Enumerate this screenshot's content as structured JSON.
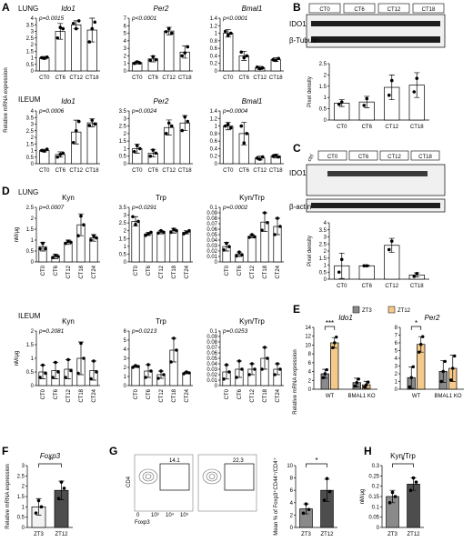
{
  "panel_labels": {
    "A": "A",
    "B": "B",
    "C": "C",
    "D": "D",
    "E": "E",
    "F": "F",
    "G": "G",
    "H": "H"
  },
  "colors": {
    "bar_white": "#ffffff",
    "zt3": "#8a8a8a",
    "zt12": "#f5c98a",
    "zt3_dark": "#4d4d4d",
    "blot_band": "#1e1e1e"
  },
  "panel_A": {
    "lung_label": "LUNG",
    "ileum_label": "ILEUM",
    "y_label": "Relative mRNA expression"
  },
  "panel_B": {
    "lanes": [
      "CT0",
      "CT6",
      "CT12",
      "CT18"
    ],
    "blot_labels": [
      "IDO1",
      "β-Tubulin"
    ]
  },
  "panel_C": {
    "lanes": [
      "ctrl",
      "CT0",
      "CT6",
      "CT12",
      "CT18"
    ],
    "blot_labels": [
      "IDO1",
      "β-actin"
    ]
  },
  "panel_D": {
    "lung_label": "LUNG",
    "ileum_label": "ILEUM"
  },
  "panel_E": {
    "legend": [
      "ZT3",
      "ZT12"
    ],
    "y_label": "Relative mRNA expression"
  },
  "panel_G": {
    "flow": {
      "gate_values": [
        "14.1",
        "22.3"
      ],
      "x_label": "Foxp3",
      "y_label": "CD4",
      "x_ticks": [
        "0",
        "10³",
        "10⁴",
        "10⁵"
      ]
    }
  },
  "chart_data": [
    {
      "id": "A-lung-ido1",
      "type": "bar",
      "title": "Ido1",
      "categories": [
        "CT0",
        "CT6",
        "CT12",
        "CT18"
      ],
      "values": [
        1,
        3,
        3.5,
        3.1
      ],
      "errors": [
        0.1,
        0.6,
        0.3,
        0.9
      ],
      "points": [
        [
          1,
          0.95,
          1.05
        ],
        [
          2.5,
          3.3,
          3.2
        ],
        [
          3.6,
          3.2,
          3.8
        ],
        [
          2.2,
          3.2,
          3.7
        ]
      ],
      "ylim": [
        0,
        4
      ],
      "yticks": [
        0,
        0.5,
        1,
        1.5,
        2,
        2.5,
        3,
        3.5,
        4
      ],
      "pvalue": "p=0.0015",
      "ylabel": "Relative mRNA expression"
    },
    {
      "id": "A-lung-per2",
      "type": "bar",
      "title": "Per2",
      "categories": [
        "CT0",
        "CT6",
        "CT12",
        "CT18"
      ],
      "values": [
        1.1,
        1.6,
        5.3,
        2.5
      ],
      "errors": [
        0.2,
        0.4,
        0.5,
        0.8
      ],
      "points": [
        [
          1,
          1.2,
          1.05
        ],
        [
          1.4,
          1.9,
          1.5
        ],
        [
          5.2,
          5.6,
          5.0
        ],
        [
          2.0,
          2.4,
          3.2
        ]
      ],
      "ylim": [
        0,
        7
      ],
      "yticks": [
        0,
        1,
        2,
        3,
        4,
        5,
        6,
        7
      ],
      "pvalue": "p<0.0001"
    },
    {
      "id": "A-lung-bmal1",
      "type": "bar",
      "title": "Bmal1",
      "categories": [
        "CT0",
        "CT6",
        "CT12",
        "CT18"
      ],
      "values": [
        1.0,
        0.4,
        0.08,
        0.3
      ],
      "errors": [
        0.1,
        0.12,
        0.04,
        0.05
      ],
      "points": [
        [
          1.05,
          0.95,
          1.0
        ],
        [
          0.5,
          0.35,
          0.4
        ],
        [
          0.1,
          0.06,
          0.08
        ],
        [
          0.3,
          0.28,
          0.33
        ]
      ],
      "ylim": [
        0,
        1.4
      ],
      "yticks": [
        0,
        0.2,
        0.4,
        0.6,
        0.8,
        1,
        1.2,
        1.4
      ],
      "pvalue": "p<0.0001"
    },
    {
      "id": "A-ileum-ido1",
      "type": "bar",
      "title": "Ido1",
      "categories": [
        "CT0",
        "CT6",
        "CT12",
        "CT18"
      ],
      "values": [
        1.0,
        0.7,
        2.4,
        3.1
      ],
      "errors": [
        0.1,
        0.2,
        0.9,
        0.3
      ],
      "points": [
        [
          1.0,
          0.95,
          1.1
        ],
        [
          0.5,
          0.7,
          0.8
        ],
        [
          1.6,
          2.5,
          3.2
        ],
        [
          2.9,
          3.3,
          3.0
        ]
      ],
      "ylim": [
        0,
        4
      ],
      "yticks": [
        0,
        0.5,
        1,
        1.5,
        2,
        2.5,
        3,
        3.5,
        4
      ],
      "pvalue": "p=0.0006",
      "ylabel": "Relative mRNA expression"
    },
    {
      "id": "A-ileum-per2",
      "type": "bar",
      "title": "Per2",
      "categories": [
        "CT0",
        "CT6",
        "CT12",
        "CT18"
      ],
      "values": [
        1.0,
        0.7,
        2.4,
        2.7
      ],
      "errors": [
        0.3,
        0.25,
        0.5,
        0.5
      ],
      "points": [
        [
          0.8,
          1.2,
          1.0
        ],
        [
          0.5,
          0.9,
          0.7
        ],
        [
          2.0,
          2.7,
          2.5
        ],
        [
          2.2,
          3.1,
          2.8
        ]
      ],
      "ylim": [
        0,
        3.5
      ],
      "yticks": [
        0,
        0.5,
        1,
        1.5,
        2,
        2.5,
        3,
        3.5
      ],
      "pvalue": "p=0.0024"
    },
    {
      "id": "A-ileum-bmal1",
      "type": "bar",
      "title": "Bmal1",
      "categories": [
        "CT0",
        "CT6",
        "CT12",
        "CT18"
      ],
      "values": [
        1.0,
        0.8,
        0.15,
        0.2
      ],
      "errors": [
        0.1,
        0.3,
        0.05,
        0.05
      ],
      "points": [
        [
          1.0,
          1.05,
          0.95
        ],
        [
          1.0,
          0.55,
          0.8
        ],
        [
          0.15,
          0.12,
          0.18
        ],
        [
          0.2,
          0.22,
          0.18
        ]
      ],
      "ylim": [
        0,
        1.4
      ],
      "yticks": [
        0,
        0.2,
        0.4,
        0.6,
        0.8,
        1,
        1.2,
        1.4
      ],
      "pvalue": "p=0.0004"
    },
    {
      "id": "B-density",
      "type": "bar",
      "title": "",
      "categories": [
        "CT0",
        "CT6",
        "CT12",
        "CT18"
      ],
      "values": [
        0.75,
        0.8,
        1.45,
        1.55
      ],
      "errors": [
        0.15,
        0.25,
        0.55,
        0.55
      ],
      "points": [
        [
          0.7,
          0.8
        ],
        [
          0.65,
          0.95
        ],
        [
          1.1,
          1.75
        ],
        [
          1.25,
          1.85
        ]
      ],
      "ylim": [
        0,
        2.5
      ],
      "yticks": [
        0,
        0.5,
        1,
        1.5,
        2,
        2.5
      ],
      "ylabel": "Pixel density"
    },
    {
      "id": "C-density",
      "type": "bar",
      "title": "",
      "categories": [
        "CT0",
        "CT6",
        "CT12",
        "CT18"
      ],
      "values": [
        0.95,
        0.95,
        2.4,
        0.3
      ],
      "errors": [
        0.9,
        0.05,
        0.5,
        0.15
      ],
      "points": [
        [
          0.5,
          1.4
        ],
        [
          0.95,
          0.95
        ],
        [
          2.1,
          2.7
        ],
        [
          0.2,
          0.4
        ]
      ],
      "ylim": [
        0,
        4
      ],
      "yticks": [
        0,
        0.5,
        1,
        1.5,
        2,
        2.5,
        3,
        3.5,
        4
      ],
      "ylabel": "Pixel density"
    },
    {
      "id": "D-lung-kyn",
      "type": "bar",
      "title": "Kyn",
      "categories": [
        "CT0",
        "CT6",
        "CT12",
        "CT18",
        "CT24"
      ],
      "values": [
        0.7,
        0.25,
        0.9,
        1.7,
        1.1
      ],
      "errors": [
        0.2,
        0.1,
        0.1,
        0.5,
        0.15
      ],
      "points": [
        [
          0.6,
          0.85,
          0.6
        ],
        [
          0.2,
          0.3,
          0.25
        ],
        [
          0.85,
          0.95,
          0.9
        ],
        [
          1.2,
          2.1,
          1.7
        ],
        [
          1.0,
          1.2,
          1.1
        ]
      ],
      "ylim": [
        0,
        2.5
      ],
      "yticks": [
        0,
        0.5,
        1,
        1.5,
        2,
        2.5
      ],
      "pvalue": "p=0.0007",
      "ylabel": "nM/μg"
    },
    {
      "id": "D-lung-trp",
      "type": "bar",
      "title": "Trp",
      "categories": [
        "CT0",
        "CT6",
        "CT12",
        "CT18",
        "CT24"
      ],
      "values": [
        2.6,
        1.8,
        1.9,
        2.0,
        1.9
      ],
      "errors": [
        0.3,
        0.1,
        0.1,
        0.15,
        0.1
      ],
      "points": [
        [
          2.9,
          2.4,
          2.6
        ],
        [
          1.7,
          1.8,
          1.9
        ],
        [
          1.85,
          2.0,
          1.9
        ],
        [
          1.9,
          2.1,
          2.0
        ],
        [
          1.8,
          1.9,
          2.0
        ]
      ],
      "ylim": [
        0,
        3.5
      ],
      "yticks": [
        0,
        0.5,
        1,
        1.5,
        2,
        2.5,
        3,
        3.5
      ],
      "pvalue": "p=0.0291"
    },
    {
      "id": "D-lung-kyntrp",
      "type": "bar",
      "title": "Kyn/Trp",
      "categories": [
        "CT0",
        "CT6",
        "CT12",
        "CT18",
        "CT24"
      ],
      "values": [
        0.028,
        0.014,
        0.047,
        0.073,
        0.065
      ],
      "errors": [
        0.008,
        0.004,
        0.003,
        0.017,
        0.015
      ],
      "points": [
        [
          0.022,
          0.034,
          0.028
        ],
        [
          0.011,
          0.018,
          0.013
        ],
        [
          0.045,
          0.05,
          0.046
        ],
        [
          0.058,
          0.09,
          0.072
        ],
        [
          0.05,
          0.08,
          0.065
        ]
      ],
      "ylim": [
        0,
        0.1
      ],
      "yticks": [
        0,
        0.01,
        0.02,
        0.03,
        0.04,
        0.05,
        0.06,
        0.07,
        0.08,
        0.09,
        0.1
      ],
      "pvalue": "p=0.0002"
    },
    {
      "id": "D-ileum-kyn",
      "type": "bar",
      "title": "Kyn",
      "categories": [
        "CT0",
        "CT6",
        "CT12",
        "CT18",
        "CT24"
      ],
      "values": [
        0.5,
        0.55,
        0.6,
        1.0,
        0.55
      ],
      "errors": [
        0.25,
        0.3,
        0.35,
        0.6,
        0.35
      ],
      "points": [
        [
          0.3,
          0.75,
          0.45
        ],
        [
          0.3,
          0.85,
          0.5
        ],
        [
          0.3,
          0.95,
          0.55
        ],
        [
          0.45,
          1.55,
          1.0
        ],
        [
          0.25,
          0.9,
          0.5
        ]
      ],
      "ylim": [
        0,
        2
      ],
      "yticks": [
        0,
        0.5,
        1,
        1.5,
        2
      ],
      "pvalue": "p=0.2081",
      "ylabel": "nM/μg"
    },
    {
      "id": "D-ileum-trp",
      "type": "bar",
      "title": "Trp",
      "categories": [
        "CT0",
        "CT6",
        "CT12",
        "CT18",
        "CT24"
      ],
      "values": [
        2.1,
        1.6,
        1.2,
        3.9,
        1.4
      ],
      "errors": [
        0.1,
        0.7,
        0.4,
        1.3,
        0.1
      ],
      "points": [
        [
          2.0,
          2.2,
          2.1
        ],
        [
          0.9,
          2.3,
          1.6
        ],
        [
          0.8,
          1.6,
          1.2
        ],
        [
          2.6,
          5.2,
          3.9
        ],
        [
          1.3,
          1.5,
          1.4
        ]
      ],
      "ylim": [
        0,
        6
      ],
      "yticks": [
        0,
        1,
        2,
        3,
        4,
        5,
        6
      ],
      "pvalue": "p=0.0213"
    },
    {
      "id": "D-ileum-kyntrp",
      "type": "bar",
      "title": "Kyn/Trp",
      "categories": [
        "CT0",
        "CT6",
        "CT12",
        "CT18",
        "CT24"
      ],
      "values": [
        0.025,
        0.03,
        0.03,
        0.05,
        0.03
      ],
      "errors": [
        0.013,
        0.015,
        0.01,
        0.02,
        0.01
      ],
      "points": [
        [
          0.012,
          0.038,
          0.025
        ],
        [
          0.015,
          0.045,
          0.03
        ],
        [
          0.02,
          0.04,
          0.03
        ],
        [
          0.03,
          0.07,
          0.05
        ],
        [
          0.02,
          0.04,
          0.03
        ]
      ],
      "ylim": [
        0,
        0.1
      ],
      "yticks": [
        0,
        0.01,
        0.02,
        0.03,
        0.04,
        0.05,
        0.06,
        0.07,
        0.08,
        0.09,
        0.1
      ],
      "pvalue": "p=0.0253"
    },
    {
      "id": "E-ido1",
      "type": "grouped_bar",
      "title": "Ido1",
      "categories": [
        "WT",
        "BMAL1 KO"
      ],
      "series": [
        {
          "name": "ZT3",
          "values": [
            3.5,
            1.5
          ],
          "errors": [
            1.0,
            1.0
          ]
        },
        {
          "name": "ZT12",
          "values": [
            10.5,
            1.0
          ],
          "errors": [
            1.2,
            0.8
          ]
        }
      ],
      "points": [
        [
          [
            2.6,
            3.5,
            4.4
          ],
          [
            0.7,
            1.5,
            2.3
          ]
        ],
        [
          [
            9.4,
            10.5,
            11.8
          ],
          [
            0.5,
            1.0,
            1.6
          ]
        ]
      ],
      "ylim": [
        0,
        14
      ],
      "yticks": [
        0,
        2,
        4,
        6,
        8,
        10,
        12,
        14
      ],
      "significance": "***",
      "ylabel": "Relative mRNA expression"
    },
    {
      "id": "E-per2",
      "type": "grouped_bar",
      "title": "Per2",
      "categories": [
        "WT",
        "BMAL1 KO"
      ],
      "series": [
        {
          "name": "ZT3",
          "values": [
            1.5,
            2.3
          ],
          "errors": [
            1.4,
            1.4
          ]
        },
        {
          "name": "ZT12",
          "values": [
            5.8,
            2.7
          ],
          "errors": [
            1.0,
            1.7
          ]
        }
      ],
      "points": [
        [
          [
            0.3,
            1.5,
            2.9
          ],
          [
            1.0,
            2.3,
            3.6
          ]
        ],
        [
          [
            4.8,
            5.8,
            6.8
          ],
          [
            1.2,
            2.7,
            4.3
          ]
        ]
      ],
      "ylim": [
        0,
        8
      ],
      "yticks": [
        0,
        1,
        2,
        3,
        4,
        5,
        6,
        7,
        8
      ],
      "significance": "*"
    },
    {
      "id": "F-foxp3",
      "type": "bar",
      "title": "Foxp3",
      "categories": [
        "ZT3",
        "ZT12"
      ],
      "values": [
        1.0,
        1.8
      ],
      "errors": [
        0.4,
        0.45
      ],
      "points": [
        [
          0.7,
          1.3,
          1.0
        ],
        [
          1.4,
          2.2,
          1.9
        ]
      ],
      "ylim": [
        0,
        3
      ],
      "yticks": [
        0,
        0.5,
        1,
        1.5,
        2,
        2.5,
        3
      ],
      "significance": "*",
      "ylabel": "Relative mRNA expression"
    },
    {
      "id": "G-treg",
      "type": "bar",
      "title": "",
      "categories": [
        "ZT3",
        "ZT12"
      ],
      "values": [
        3.0,
        6.0
      ],
      "errors": [
        0.8,
        1.8
      ],
      "points": [
        [
          2.3,
          3.8,
          2.9
        ],
        [
          4.4,
          7.9,
          5.8
        ]
      ],
      "ylim": [
        0,
        10
      ],
      "yticks": [
        0,
        2,
        4,
        6,
        8,
        10
      ],
      "significance": "*",
      "ylabel": "Mean % of Foxp3⁺CD44⁺/CD4⁺"
    },
    {
      "id": "H-kyntrp",
      "type": "bar",
      "title": "Kyn/Trp",
      "categories": [
        "ZT3",
        "ZT12"
      ],
      "values": [
        0.15,
        0.21
      ],
      "errors": [
        0.03,
        0.03
      ],
      "points": [
        [
          0.12,
          0.17,
          0.15
        ],
        [
          0.18,
          0.24,
          0.22
        ]
      ],
      "ylim": [
        0,
        0.3
      ],
      "yticks": [
        0,
        0.05,
        0.1,
        0.15,
        0.2,
        0.25,
        0.3
      ],
      "significance": "*",
      "ylabel": "nM/μg"
    }
  ]
}
